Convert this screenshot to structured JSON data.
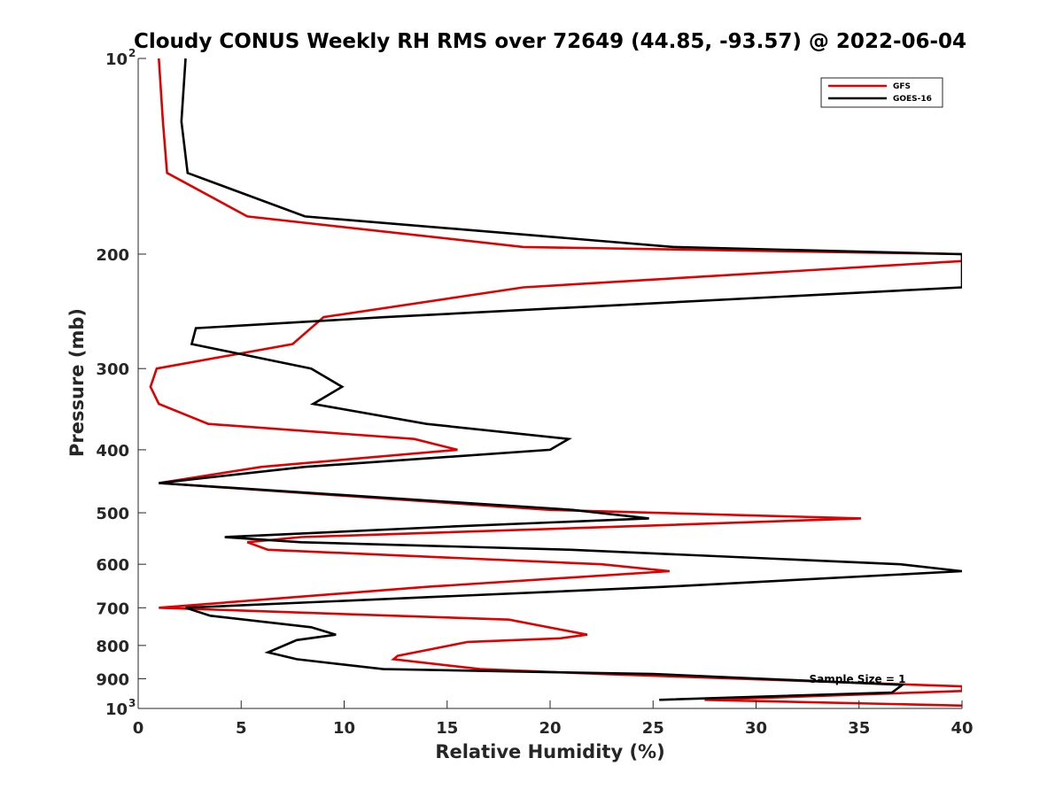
{
  "chart_data": {
    "type": "line",
    "title": "Cloudy CONUS Weekly RH RMS over 72649 (44.85, -93.57) @ 2022-06-04",
    "xlabel": "Relative Humidity (%)",
    "ylabel": "Pressure (mb)",
    "xlim": [
      0,
      40
    ],
    "ylim": [
      100,
      1000
    ],
    "y_scale": "log",
    "y_reversed": true,
    "grid": false,
    "legend_position": "top-right",
    "annotation": "Sample Size = 1",
    "x_ticks": [
      "0",
      "5",
      "10",
      "15",
      "20",
      "25",
      "30",
      "35",
      "40"
    ],
    "y_ticks": [
      {
        "base": "10",
        "exp": "2"
      },
      {
        "base": "200",
        "exp": ""
      },
      {
        "base": "300",
        "exp": ""
      },
      {
        "base": "400",
        "exp": ""
      },
      {
        "base": "500",
        "exp": ""
      },
      {
        "base": "600",
        "exp": ""
      },
      {
        "base": "700",
        "exp": ""
      },
      {
        "base": "800",
        "exp": ""
      },
      {
        "base": "900",
        "exp": ""
      },
      {
        "base": "10",
        "exp": "3"
      }
    ],
    "series": [
      {
        "name": "GFS",
        "color": "#e00000",
        "points": [
          [
            1.0,
            100
          ],
          [
            1.2,
            125
          ],
          [
            1.4,
            150
          ],
          [
            5.3,
            175
          ],
          [
            18.7,
            195
          ],
          [
            40.0,
            200
          ],
          [
            40.0,
            205
          ],
          [
            18.7,
            225
          ],
          [
            9.0,
            250
          ],
          [
            7.5,
            275
          ],
          [
            0.9,
            300
          ],
          [
            0.6,
            320
          ],
          [
            1.0,
            340
          ],
          [
            3.4,
            365
          ],
          [
            13.4,
            385
          ],
          [
            15.5,
            400
          ],
          [
            6.0,
            425
          ],
          [
            1.0,
            450
          ],
          [
            20.0,
            495
          ],
          [
            35.1,
            510
          ],
          [
            23.5,
            525
          ],
          [
            7.9,
            545
          ],
          [
            5.3,
            555
          ],
          [
            6.3,
            570
          ],
          [
            22.5,
            600
          ],
          [
            25.8,
            615
          ],
          [
            14.0,
            650
          ],
          [
            1.0,
            700
          ],
          [
            18.0,
            730
          ],
          [
            21.8,
            770
          ],
          [
            20.5,
            780
          ],
          [
            16.0,
            790
          ],
          [
            12.6,
            830
          ],
          [
            12.4,
            840
          ],
          [
            16.6,
            870
          ],
          [
            22.5,
            885
          ],
          [
            40.0,
            925
          ],
          [
            40.0,
            940
          ],
          [
            27.5,
            970
          ],
          [
            40.0,
            990
          ]
        ]
      },
      {
        "name": "GOES-16",
        "color": "#000000",
        "points": [
          [
            2.3,
            100
          ],
          [
            2.1,
            125
          ],
          [
            2.4,
            150
          ],
          [
            8.1,
            175
          ],
          [
            26.0,
            195
          ],
          [
            40.0,
            200
          ],
          [
            40.0,
            225
          ],
          [
            12.0,
            250
          ],
          [
            2.8,
            260
          ],
          [
            2.6,
            275
          ],
          [
            8.4,
            300
          ],
          [
            9.9,
            320
          ],
          [
            8.5,
            340
          ],
          [
            14.0,
            365
          ],
          [
            20.9,
            385
          ],
          [
            20.0,
            400
          ],
          [
            8.1,
            425
          ],
          [
            1.0,
            450
          ],
          [
            21.1,
            495
          ],
          [
            24.8,
            510
          ],
          [
            15.2,
            525
          ],
          [
            4.2,
            545
          ],
          [
            7.9,
            555
          ],
          [
            21.0,
            570
          ],
          [
            37.0,
            600
          ],
          [
            40.0,
            615
          ],
          [
            25.5,
            650
          ],
          [
            2.3,
            700
          ],
          [
            3.5,
            720
          ],
          [
            8.4,
            750
          ],
          [
            9.6,
            770
          ],
          [
            7.7,
            785
          ],
          [
            6.3,
            820
          ],
          [
            7.7,
            840
          ],
          [
            11.9,
            870
          ],
          [
            25.0,
            885
          ],
          [
            37.1,
            920
          ],
          [
            36.6,
            945
          ],
          [
            25.3,
            970
          ]
        ]
      }
    ]
  }
}
